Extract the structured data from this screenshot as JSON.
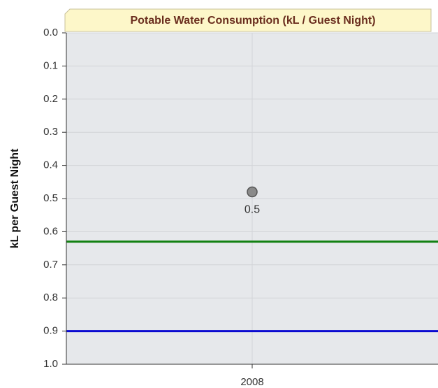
{
  "chart_data": {
    "type": "scatter",
    "title": "Potable Water Consumption (kL / Guest Night)",
    "y_label": "kL per Guest Night",
    "categories": [
      "2008"
    ],
    "series": [
      {
        "color": "#8a8a8a",
        "values": [
          0.48
        ],
        "value_labels": [
          "0.5"
        ]
      }
    ],
    "reference_lines": [
      {
        "value": 0.63,
        "color": "#118011"
      },
      {
        "value": 0.9,
        "color": "#0a0ad0"
      }
    ],
    "ylim": [
      0,
      1
    ],
    "y_reversed": true,
    "yticks": [
      {
        "value": 0,
        "label": "0.0"
      },
      0.1,
      0.2,
      0.3,
      0.4,
      0.5,
      0.6,
      0.7,
      0.8,
      0.9,
      {
        "value": 1,
        "label": "1.0"
      }
    ],
    "grid": true
  }
}
